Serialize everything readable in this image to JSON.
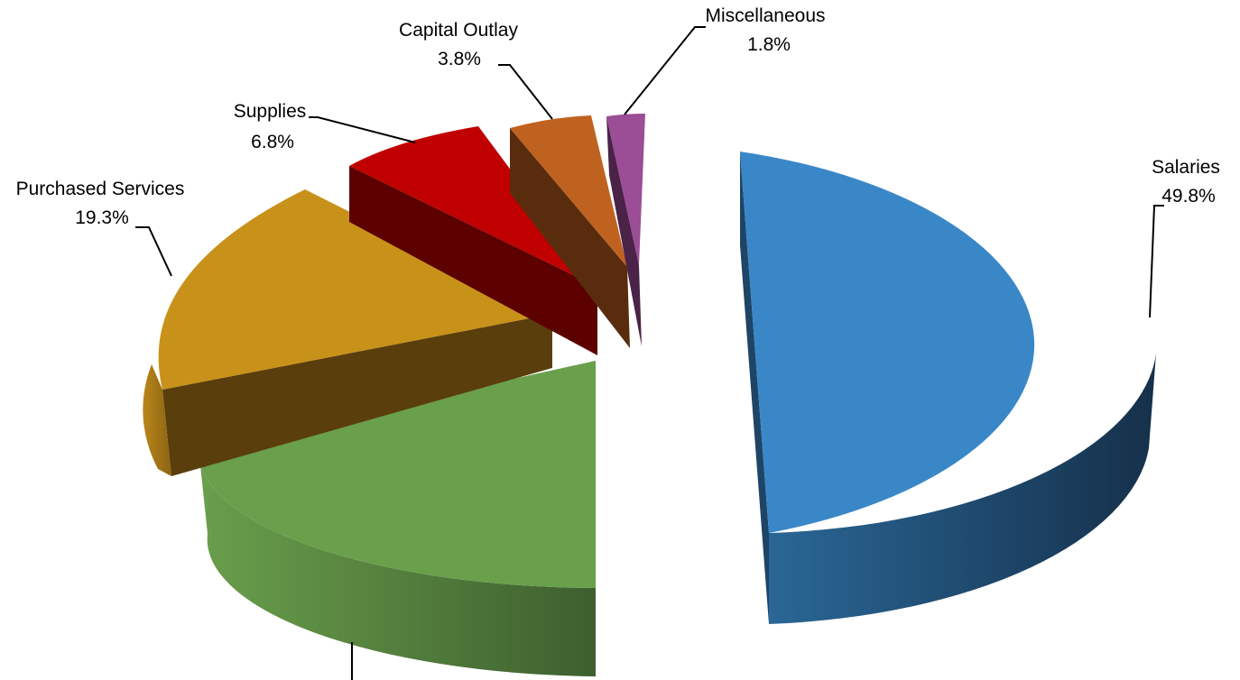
{
  "chart_data": {
    "type": "pie",
    "style": "3d-exploded",
    "slices": [
      {
        "name": "Salaries",
        "value": 49.8,
        "label": "49.8%",
        "color": "#3A87C8",
        "dark": "#1B3A57"
      },
      {
        "name": "",
        "value": 18.5,
        "label": "",
        "color": "#6A9F4C",
        "dark": "#3F6330"
      },
      {
        "name": "Purchased Services",
        "value": 19.3,
        "label": "19.3%",
        "color": "#C8921A",
        "dark": "#5A3E0C"
      },
      {
        "name": "Supplies",
        "value": 6.8,
        "label": "6.8%",
        "color": "#C00000",
        "dark": "#5C0000"
      },
      {
        "name": "Capital Outlay",
        "value": 3.8,
        "label": "3.8%",
        "color": "#C0621F",
        "dark": "#5A2C0E"
      },
      {
        "name": "Miscellaneous",
        "value": 1.8,
        "label": "1.8%",
        "color": "#9B4D96",
        "dark": "#4A2347"
      }
    ]
  }
}
